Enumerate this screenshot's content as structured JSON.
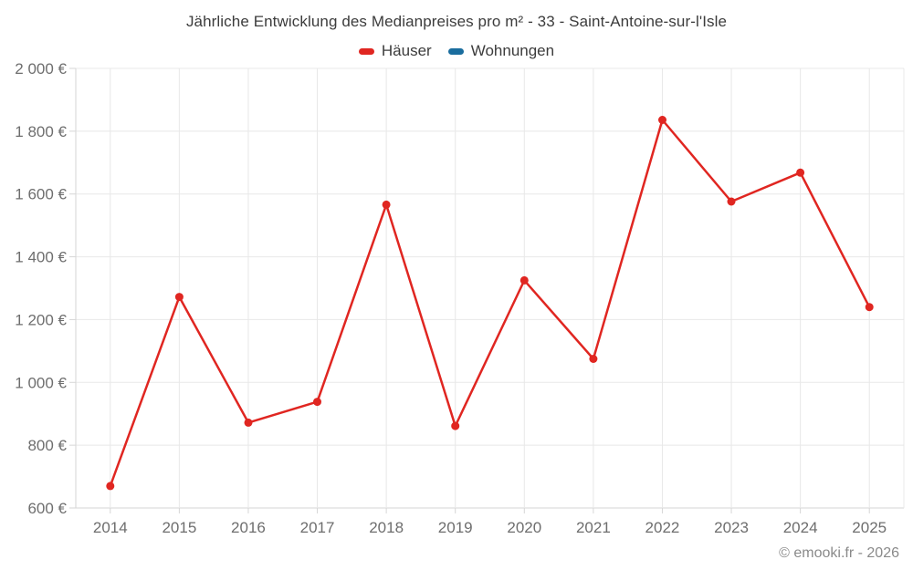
{
  "title": "Jährliche Entwicklung des Medianpreises pro m² - 33 - Saint-Antoine-sur-l'Isle",
  "copyright": "© emooki.fr - 2026",
  "colors": {
    "hauser_red": "#e02621",
    "wohnungen_blue": "#1a6d9e",
    "gridline": "#e8e8e8",
    "axis_line": "#d6d6d6",
    "title_text": "#3c3c3c",
    "tick_text": "#6e6e6e",
    "copyright_text": "#8a8a8a",
    "background": "#ffffff"
  },
  "chart_data": {
    "type": "line",
    "title": "Jährliche Entwicklung des Medianpreises pro m² - 33 - Saint-Antoine-sur-l'Isle",
    "xlabel": "",
    "ylabel": "",
    "categories": [
      "2014",
      "2015",
      "2016",
      "2017",
      "2018",
      "2019",
      "2020",
      "2021",
      "2022",
      "2023",
      "2024",
      "2025"
    ],
    "series": [
      {
        "name": "Häuser",
        "color": "#e02621",
        "values": [
          670,
          1272,
          872,
          938,
          1566,
          861,
          1325,
          1075,
          1836,
          1576,
          1668,
          1240
        ]
      },
      {
        "name": "Wohnungen",
        "color": "#1a6d9e",
        "values": []
      }
    ],
    "ylim": [
      600,
      2000
    ],
    "ytick_step": 200,
    "yticks": [
      {
        "value": 600,
        "label": "600 €"
      },
      {
        "value": 800,
        "label": "800 €"
      },
      {
        "value": 1000,
        "label": "1 000 €"
      },
      {
        "value": 1200,
        "label": "1 200 €"
      },
      {
        "value": 1400,
        "label": "1 400 €"
      },
      {
        "value": 1600,
        "label": "1 600 €"
      },
      {
        "value": 1800,
        "label": "1 800 €"
      },
      {
        "value": 2000,
        "label": "2 000 €"
      }
    ],
    "grid": true,
    "legend_position": "top",
    "currency_suffix": " €"
  }
}
